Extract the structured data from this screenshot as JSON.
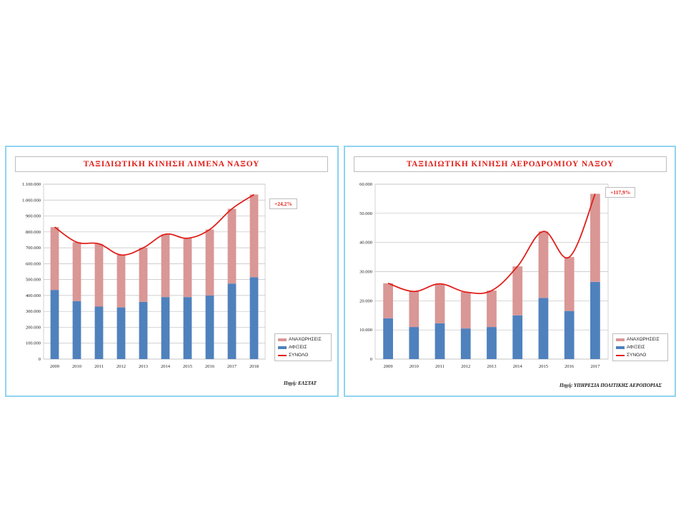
{
  "chart_data": [
    {
      "type": "bar",
      "title": "ΤΑΞΙΔΙΩΤΙΚΗ  ΚΙΝΗΣΗ  ΛΙΜΕΝΑ  ΝΑΞΟΥ",
      "stacked": true,
      "categories": [
        "2009",
        "2010",
        "2011",
        "2012",
        "2013",
        "2014",
        "2015",
        "2016",
        "2017",
        "2018"
      ],
      "series": [
        {
          "name": "ΑΦΙΞΕΙΣ",
          "type": "bar",
          "color": "#4f81bd",
          "values": [
            435000,
            365000,
            330000,
            325000,
            360000,
            390000,
            390000,
            400000,
            475000,
            515000
          ]
        },
        {
          "name": "ΑΝΑΧΩΡΗΣΕΙΣ",
          "type": "bar",
          "color": "#d99795",
          "values": [
            395000,
            370000,
            395000,
            330000,
            340000,
            395000,
            370000,
            415000,
            470000,
            520000
          ]
        },
        {
          "name": "ΣΥΝΟΛΟ",
          "type": "line",
          "color": "#e0201b",
          "values": [
            830000,
            735000,
            725000,
            655000,
            700000,
            785000,
            760000,
            815000,
            945000,
            1035000
          ]
        }
      ],
      "ylim": [
        0,
        1100000
      ],
      "yticks": [
        0,
        100000,
        200000,
        300000,
        400000,
        500000,
        600000,
        700000,
        800000,
        900000,
        1000000,
        1100000
      ],
      "ytick_labels": [
        "0",
        "100.000",
        "200.000",
        "300.000",
        "400.000",
        "500.000",
        "600.000",
        "700.000",
        "800.000",
        "900.000",
        "1.000.000",
        "1.100.000"
      ],
      "grid": true,
      "legend_position": "bottom-right",
      "annotation": "+24,2%",
      "source": "Πηγή: ΕΛΣΤΑΤ"
    },
    {
      "type": "bar",
      "title": "ΤΑΞΙΔΙΩΤΙΚΗ  ΚΙΝΗΣΗ  ΑΕΡΟΔΡΟΜΙΟΥ  ΝΑΞΟΥ",
      "stacked": true,
      "categories": [
        "2009",
        "2010",
        "2011",
        "2012",
        "2013",
        "2014",
        "2015",
        "2016",
        "2017"
      ],
      "series": [
        {
          "name": "ΑΦΙΞΕΙΣ",
          "type": "bar",
          "color": "#4f81bd",
          "values": [
            14000,
            11000,
            12300,
            10500,
            11000,
            15000,
            21000,
            16500,
            26500
          ]
        },
        {
          "name": "ΑΝΑΧΩΡΗΣΕΙΣ",
          "type": "bar",
          "color": "#d99795",
          "values": [
            12000,
            12200,
            13500,
            12500,
            12500,
            16800,
            22800,
            18500,
            30200
          ]
        },
        {
          "name": "ΣΥΝΟΛΟ",
          "type": "line",
          "color": "#e0201b",
          "values": [
            26000,
            23200,
            25800,
            23000,
            23500,
            31800,
            43800,
            35000,
            56700
          ]
        }
      ],
      "ylim": [
        0,
        60000
      ],
      "yticks": [
        0,
        10000,
        20000,
        30000,
        40000,
        50000,
        60000
      ],
      "ytick_labels": [
        "0",
        "10.000",
        "20.000",
        "30.000",
        "40.000",
        "50.000",
        "60.000"
      ],
      "grid": true,
      "legend_position": "bottom-right",
      "annotation": "+117,9%",
      "source": "Πηγή: ΥΠΗΡΕΣΙΑ ΠΟΛΙΤΙΚΗΣ  ΑΕΡΟΠΟΡΙΑΣ"
    }
  ]
}
